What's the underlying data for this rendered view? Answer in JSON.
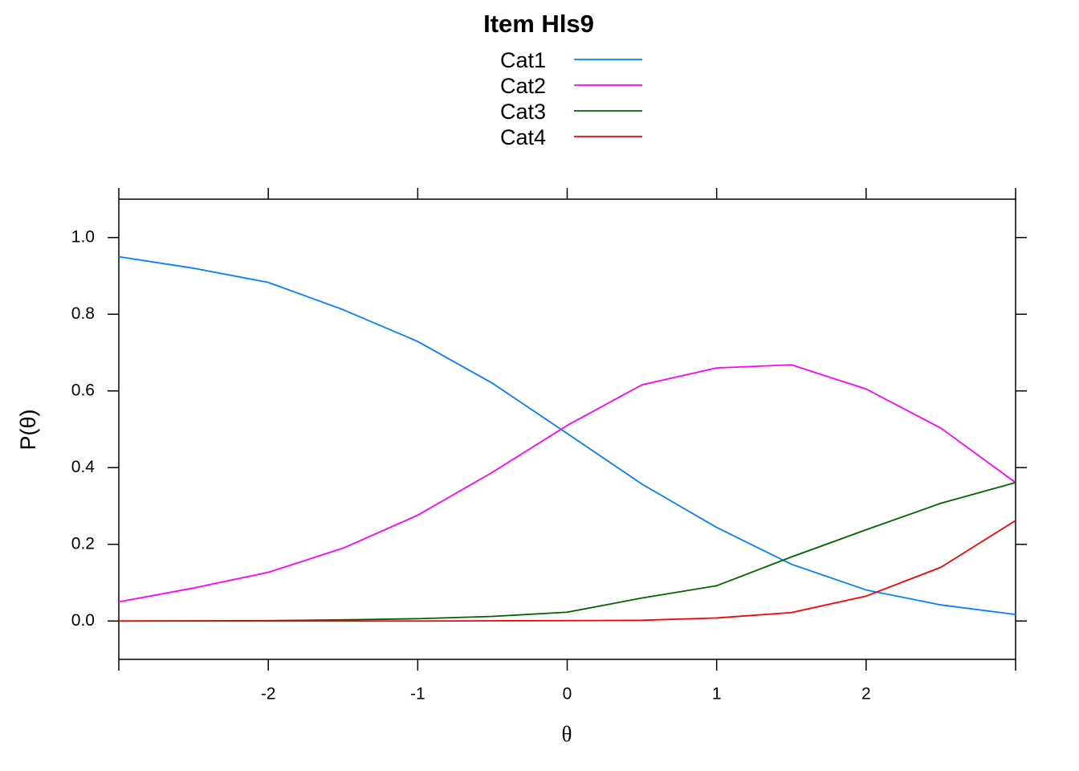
{
  "chart_data": {
    "type": "line",
    "title": "Item Hls9",
    "x_label": "θ",
    "y_label": "P(θ)",
    "x": [
      -3,
      -2.5,
      -2,
      -1.5,
      -1,
      -0.5,
      0,
      0.5,
      1,
      1.5,
      2,
      2.5,
      3
    ],
    "series": [
      {
        "name": "Cat1",
        "color": "#0080ff",
        "values": [
          0.95,
          0.92,
          0.883,
          0.812,
          0.729,
          0.62,
          0.489,
          0.357,
          0.244,
          0.148,
          0.081,
          0.042,
          0.017
        ]
      },
      {
        "name": "Cat2",
        "color": "#ff00ff",
        "values": [
          0.05,
          0.086,
          0.127,
          0.19,
          0.276,
          0.388,
          0.51,
          0.616,
          0.66,
          0.668,
          0.605,
          0.503,
          0.361
        ]
      },
      {
        "name": "Cat3",
        "color": "#006400",
        "values": [
          0,
          0.0005,
          0.001,
          0.003,
          0.006,
          0.012,
          0.023,
          0.06,
          0.092,
          0.167,
          0.238,
          0.307,
          0.361
        ]
      },
      {
        "name": "Cat4",
        "color": "#ff0000",
        "values": [
          0,
          0,
          0,
          0,
          0,
          0.0005,
          0.001,
          0.002,
          0.008,
          0.022,
          0.065,
          0.14,
          0.262
        ]
      }
    ],
    "xlim": [
      -3,
      3
    ],
    "ylim": [
      -0.1,
      1.1
    ],
    "xticks": [
      -2,
      -1,
      0,
      1,
      2
    ],
    "yticks": [
      {
        "value": 0,
        "label": "0.0"
      },
      0.2,
      0.4,
      0.6,
      0.8,
      {
        "value": 1,
        "label": "1.0"
      }
    ],
    "grid": false,
    "legend": "top"
  }
}
